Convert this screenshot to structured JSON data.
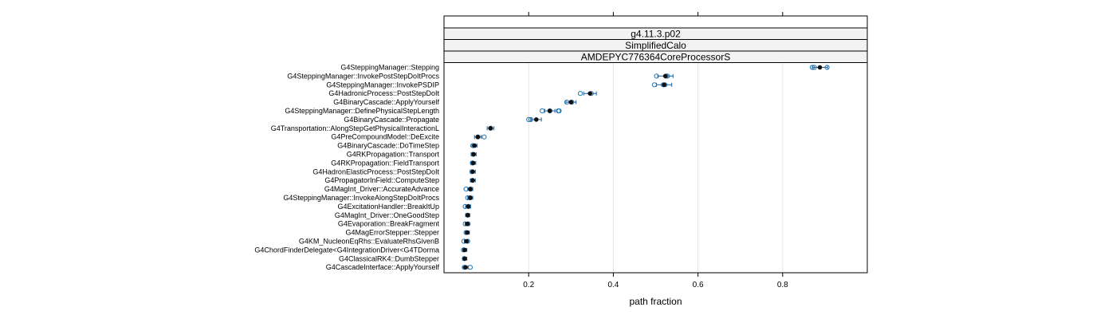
{
  "chart_data": {
    "type": "scatter",
    "title": "",
    "strips": [
      "g4.11.3.p02",
      "SimplifiedCalo",
      "AMDEPYC776364CoreProcessorS"
    ],
    "xlabel": "path fraction",
    "ylabel": "",
    "xlim": [
      0.0,
      1.0
    ],
    "xticks": [
      0.2,
      0.4,
      0.6,
      0.8
    ],
    "xtick_labels": [
      "0.2",
      "0.4",
      "0.6",
      "0.8"
    ],
    "grid": true,
    "colors": {
      "run_points": "#1f77b4",
      "mean_points": "#111111",
      "strip_fill": "#f2f2f2",
      "grid": "#e6e6e6"
    },
    "categories": [
      "G4SteppingManager::Stepping",
      "G4SteppingManager::InvokePostStepDoItProcs",
      "G4SteppingManager::InvokePSDIP",
      "G4HadronicProcess::PostStepDoIt",
      "G4BinaryCascade::ApplyYourself",
      "G4SteppingManager::DefinePhysicalStepLength",
      "G4BinaryCascade::Propagate",
      "G4Transportation::AlongStepGetPhysicalInteractionL",
      "G4PreCompoundModel::DeExcite",
      "G4BinaryCascade::DoTimeStep",
      "G4RKPropagation::Transport",
      "G4RKPropagation::FieldTransport",
      "G4HadronElasticProcess::PostStepDoIt",
      "G4PropagatorInField::ComputeStep",
      "G4MagInt_Driver::AccurateAdvance",
      "G4SteppingManager::InvokeAlongStepDoItProcs",
      "G4ExcitationHandler::BreakItUp",
      "G4MagInt_Driver::OneGoodStep",
      "G4Evaporation::BreakFragment",
      "G4MagErrorStepper::Stepper",
      "G4KM_NucleonEqRhs::EvaluateRhsGivenB",
      "G4ChordFinderDelegate<G4IntegrationDriver<G4TDorma",
      "G4ClassicalRK4::DumbStepper",
      "G4CascadeInterface::ApplyYourself"
    ],
    "means": [
      0.888,
      0.523,
      0.52,
      0.345,
      0.3,
      0.25,
      0.218,
      0.11,
      0.08,
      0.072,
      0.07,
      0.069,
      0.068,
      0.068,
      0.062,
      0.062,
      0.057,
      0.056,
      0.055,
      0.055,
      0.053,
      0.049,
      0.049,
      0.051
    ],
    "errors": [
      0.018,
      0.018,
      0.018,
      0.015,
      0.012,
      0.012,
      0.012,
      0.008,
      0.008,
      0.006,
      0.006,
      0.006,
      0.006,
      0.006,
      0.006,
      0.006,
      0.006,
      0.005,
      0.005,
      0.005,
      0.005,
      0.005,
      0.005,
      0.006
    ],
    "runs": [
      [
        0.87,
        0.875,
        0.905
      ],
      [
        0.502,
        0.525,
        0.528
      ],
      [
        0.497,
        0.518,
        0.522
      ],
      [
        0.322,
        0.348
      ],
      [
        0.29,
        0.302
      ],
      [
        0.232,
        0.25,
        0.27,
        0.272
      ],
      [
        0.2,
        0.205
      ],
      [
        0.11
      ],
      [
        0.08,
        0.095
      ],
      [
        0.068
      ],
      [
        0.069
      ],
      [
        0.067
      ],
      [
        0.066
      ],
      [
        0.067
      ],
      [
        0.052,
        0.063
      ],
      [
        0.056,
        0.062
      ],
      [
        0.05,
        0.058
      ],
      [
        0.056
      ],
      [
        0.05,
        0.057
      ],
      [
        0.052
      ],
      [
        0.047,
        0.056
      ],
      [
        0.046
      ],
      [
        0.048
      ],
      [
        0.048,
        0.062
      ]
    ]
  }
}
